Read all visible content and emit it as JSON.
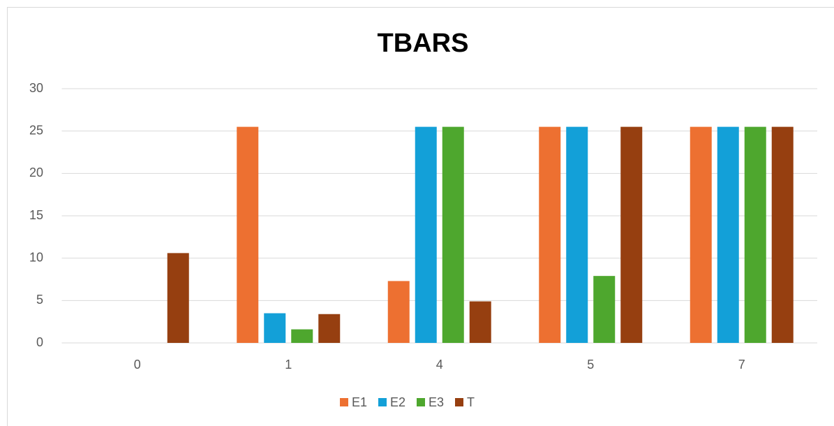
{
  "chart_data": {
    "type": "bar",
    "title": "TBARS",
    "categories": [
      "0",
      "1",
      "4",
      "5",
      "7"
    ],
    "series": [
      {
        "name": "E1",
        "color": "#ed7031",
        "values": [
          0,
          25.5,
          7.3,
          25.5,
          25.5
        ]
      },
      {
        "name": "E2",
        "color": "#13a0d8",
        "values": [
          0,
          3.5,
          25.5,
          25.5,
          25.5
        ]
      },
      {
        "name": "E3",
        "color": "#4ea72e",
        "values": [
          0,
          1.6,
          25.5,
          7.9,
          25.5
        ]
      },
      {
        "name": "T",
        "color": "#963f10",
        "values": [
          10.6,
          3.4,
          4.9,
          25.5,
          25.5
        ]
      }
    ],
    "ylim": [
      0,
      30
    ],
    "yticks": [
      0,
      5,
      10,
      15,
      20,
      25,
      30
    ],
    "grid": true,
    "legend": "bottom"
  }
}
